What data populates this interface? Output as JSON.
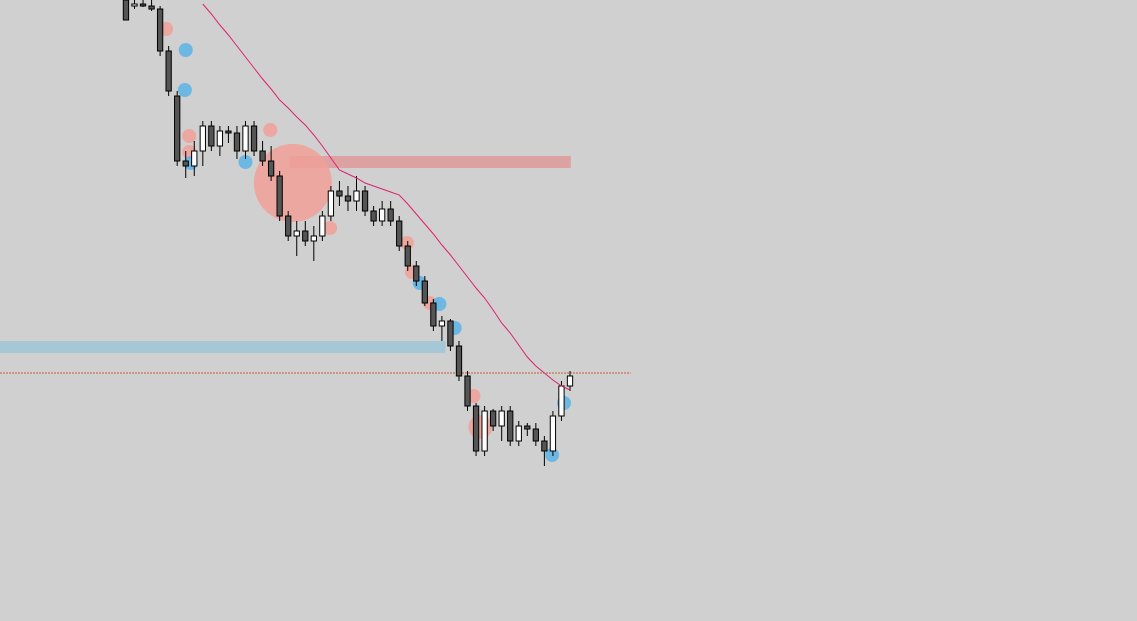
{
  "chart_data": {
    "type": "candlestick",
    "background": "#d0d0d0",
    "up_color": "#ffffff",
    "down_color": "#555555",
    "outline_color": "#000000",
    "xlim": [
      -14.75,
      118.4
    ],
    "ylim": [
      0,
      621
    ],
    "x": [
      0,
      1,
      2,
      3,
      4,
      5,
      6,
      7,
      8,
      9,
      10,
      11,
      12,
      13,
      14,
      15,
      16,
      17,
      18,
      19,
      20,
      21,
      22,
      23,
      24,
      25,
      26,
      27,
      28,
      29,
      30,
      31,
      32,
      33,
      34,
      35,
      36,
      37,
      38,
      39,
      40,
      41,
      42,
      43,
      44,
      45,
      46,
      47,
      48,
      49,
      50,
      51,
      52
    ],
    "open": [
      621,
      615,
      617,
      615,
      612,
      570,
      525,
      460,
      455,
      470,
      495,
      475,
      490,
      488,
      470,
      495,
      470,
      460,
      445,
      405,
      385,
      390,
      380,
      385,
      405,
      430,
      425,
      420,
      430,
      410,
      400,
      412,
      400,
      375,
      355,
      340,
      318,
      295,
      300,
      275,
      245,
      215,
      170,
      210,
      195,
      210,
      180,
      195,
      192,
      180,
      170,
      205,
      235
    ],
    "high": [
      626,
      621,
      621,
      621,
      615,
      575,
      530,
      470,
      480,
      500,
      500,
      495,
      495,
      495,
      500,
      500,
      480,
      475,
      450,
      410,
      400,
      400,
      395,
      410,
      435,
      440,
      435,
      445,
      435,
      415,
      420,
      420,
      405,
      380,
      360,
      345,
      322,
      305,
      302,
      280,
      250,
      218,
      215,
      212,
      215,
      215,
      200,
      198,
      198,
      185,
      210,
      240,
      250
    ],
    "low": [
      601,
      612,
      614,
      610,
      565,
      525,
      455,
      443,
      445,
      455,
      470,
      465,
      478,
      462,
      462,
      465,
      455,
      440,
      400,
      380,
      365,
      375,
      360,
      380,
      400,
      415,
      410,
      410,
      405,
      395,
      395,
      395,
      370,
      350,
      335,
      315,
      290,
      280,
      270,
      240,
      210,
      165,
      165,
      190,
      180,
      175,
      175,
      185,
      175,
      155,
      165,
      200,
      230
    ],
    "close": [
      601,
      617,
      615,
      612,
      570,
      530,
      460,
      455,
      470,
      495,
      475,
      490,
      488,
      470,
      495,
      470,
      460,
      445,
      405,
      385,
      390,
      380,
      385,
      405,
      430,
      425,
      420,
      430,
      410,
      400,
      412,
      400,
      375,
      355,
      340,
      318,
      295,
      300,
      275,
      245,
      215,
      170,
      210,
      195,
      210,
      180,
      195,
      192,
      180,
      170,
      205,
      235,
      245
    ],
    "ma": {
      "color": "#e0206e",
      "values": [
        null,
        null,
        null,
        null,
        null,
        null,
        null,
        null,
        null,
        617,
        607,
        596,
        586,
        575,
        564,
        553,
        542,
        532,
        521,
        513,
        504,
        496,
        486,
        475,
        463,
        451,
        447,
        443,
        438,
        435,
        432,
        429,
        426,
        417,
        407,
        397,
        387,
        376,
        366,
        355,
        344,
        333,
        323,
        311,
        298,
        288,
        276,
        264,
        255,
        248,
        241,
        235,
        231
      ]
    },
    "zones": [
      {
        "color": "#dca2a2",
        "top": 465,
        "bottom": 453,
        "start": 19.2,
        "end": 52.1
      },
      {
        "color": "#a6c8d6",
        "top": 280,
        "bottom": 268,
        "start": -14.75,
        "end": 37.4
      }
    ],
    "level": {
      "color": "#c0603a",
      "value": 248,
      "start": -14.75,
      "end": 59.1
    },
    "bubbles": [
      {
        "color": "#f0a098",
        "x": 19.55,
        "y": 438,
        "size": 39
      },
      {
        "color": "#f0a098",
        "x": 4.7,
        "y": 592,
        "size": 7
      },
      {
        "color": "#f0a098",
        "x": 7.4,
        "y": 485,
        "size": 7
      },
      {
        "color": "#f0a098",
        "x": 7.4,
        "y": 469,
        "size": 7
      },
      {
        "color": "#f0a098",
        "x": 16.9,
        "y": 491,
        "size": 7
      },
      {
        "color": "#f0a098",
        "x": 23.9,
        "y": 393,
        "size": 7
      },
      {
        "color": "#f0a098",
        "x": 32.9,
        "y": 378,
        "size": 7
      },
      {
        "color": "#f0a098",
        "x": 33.5,
        "y": 349,
        "size": 7
      },
      {
        "color": "#f0a098",
        "x": 35.6,
        "y": 318,
        "size": 7
      },
      {
        "color": "#f0a098",
        "x": 40.7,
        "y": 225,
        "size": 7
      },
      {
        "color": "#f0a098",
        "x": 41.5,
        "y": 194,
        "size": 12
      },
      {
        "color": "#5ab4e6",
        "x": 7.0,
        "y": 571,
        "size": 7
      },
      {
        "color": "#5ab4e6",
        "x": 6.9,
        "y": 531,
        "size": 7
      },
      {
        "color": "#5ab4e6",
        "x": 7.6,
        "y": 458,
        "size": 7
      },
      {
        "color": "#5ab4e6",
        "x": 14.0,
        "y": 459,
        "size": 7
      },
      {
        "color": "#5ab4e6",
        "x": 34.4,
        "y": 338,
        "size": 7
      },
      {
        "color": "#5ab4e6",
        "x": 36.7,
        "y": 317,
        "size": 7
      },
      {
        "color": "#5ab4e6",
        "x": 38.5,
        "y": 293,
        "size": 7
      },
      {
        "color": "#5ab4e6",
        "x": 51.3,
        "y": 218,
        "size": 7
      },
      {
        "color": "#5ab4e6",
        "x": 49.9,
        "y": 166,
        "size": 7
      }
    ]
  }
}
